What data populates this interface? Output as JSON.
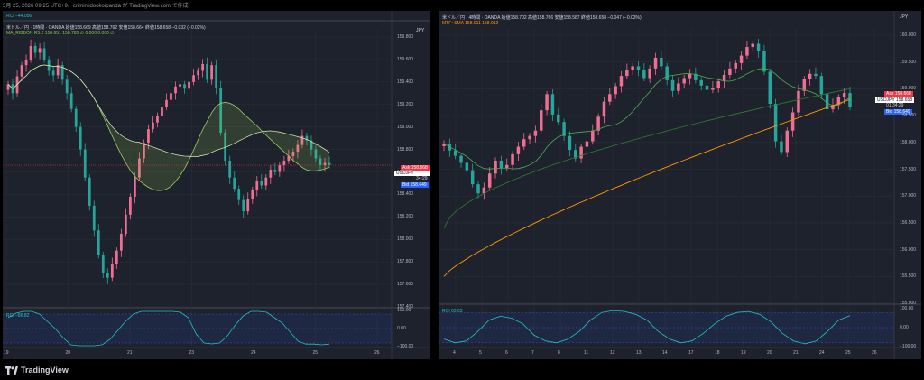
{
  "header_text": "3月 25, 2026 09:25 UTC+9、criminlidookoipanda が TradingView.com で作成",
  "brand": "TradingView",
  "colors": {
    "bg": "#1e222d",
    "up": "#f06e91",
    "down": "#26a69a",
    "grid": "#2a2e39",
    "ribbon": "#8bc34a",
    "sma": "#ff9800",
    "rci": "#22c1c3",
    "ask": "#f23645",
    "bid": "#2962ff"
  },
  "left": {
    "top_rci_label": "RCI  −44.056",
    "currency": "JPY",
    "title": "米ドル／円 · 1時間 · OANDA  始値158.669  高値158.762  安値158.664  終値158.658  −0.032 (−0.02%)",
    "indicator": "MA_RIBBON R5.2  158.651  158.785  ∅  0.000  0.000  ∅",
    "price_labels": [
      "159.800",
      "159.600",
      "159.400",
      "159.200",
      "159.000",
      "158.800",
      "158.600",
      "158.400",
      "158.200",
      "158.000",
      "157.800",
      "157.600",
      "157.400"
    ],
    "x_labels": [
      "19",
      "20",
      "21",
      "23",
      "24",
      "25",
      "26"
    ],
    "ask_label": "Ask  158.668",
    "symbol_label": "USDJPY  158.658",
    "countdown": "34:29",
    "bid_label": "Bid  158.649",
    "rci_label": "RCI  −86.82",
    "rci_scale": [
      "100.00",
      "0.00",
      "−100.00"
    ]
  },
  "right": {
    "currency": "JPY",
    "title": "米ドル／円 · 4時間 · OANDA  始値158.702  高値158.766  安値158.587  終値158.658  −0.047 (−0.03%)",
    "indicator": "MTF~SMA  158.911  158.912",
    "price_labels": [
      "160.000",
      "159.500",
      "159.000",
      "158.500",
      "158.000",
      "157.500",
      "157.000",
      "156.500",
      "156.000",
      "155.500",
      "155.000"
    ],
    "x_labels": [
      "4",
      "5",
      "6",
      "7",
      "8",
      "11",
      "12",
      "13",
      "14",
      "17",
      "18",
      "19",
      "20",
      "21",
      "24",
      "25",
      "26"
    ],
    "ask_label": "Ask  158.668",
    "symbol_label": "USDJPY  158.658",
    "countdown": "01:34:29",
    "bid_label": "Bid  158.649",
    "rci_label": "RCI  63.03",
    "rci_scale": [
      "100.00",
      "0.00",
      "−100.00"
    ]
  },
  "chart_data": [
    {
      "type": "candlestick",
      "title": "USD/JPY 1H",
      "ylim": [
        157.4,
        159.8
      ],
      "closes": [
        159.38,
        159.3,
        159.45,
        159.55,
        159.6,
        159.72,
        159.66,
        159.7,
        159.6,
        159.5,
        159.46,
        159.55,
        159.42,
        159.3,
        159.16,
        159.0,
        158.8,
        158.55,
        158.3,
        158.08,
        157.86,
        157.7,
        157.66,
        157.78,
        157.9,
        158.05,
        158.22,
        158.38,
        158.55,
        158.72,
        158.86,
        158.98,
        159.04,
        159.1,
        159.18,
        159.24,
        159.3,
        159.36,
        159.38,
        159.34,
        159.4,
        159.46,
        159.5,
        159.56,
        159.42,
        159.55,
        159.35,
        158.95,
        158.7,
        158.55,
        158.45,
        158.35,
        158.25,
        158.36,
        158.44,
        158.52,
        158.48,
        158.55,
        158.62,
        158.6,
        158.66,
        158.7,
        158.74,
        158.78,
        158.84,
        158.92,
        158.88,
        158.8,
        158.72,
        158.66,
        158.68,
        158.66
      ],
      "rci": [
        60,
        85,
        95,
        95,
        80,
        40,
        0,
        -50,
        -90,
        -95,
        -95,
        -95,
        -90,
        -60,
        -10,
        40,
        80,
        95,
        95,
        95,
        95,
        95,
        90,
        60,
        -30,
        -80,
        -85,
        -80,
        -40,
        20,
        70,
        95,
        95,
        90,
        60,
        30,
        -20,
        -70,
        -86,
        -86,
        -90,
        -86
      ]
    },
    {
      "type": "candlestick",
      "title": "USD/JPY 4H",
      "ylim": [
        155.0,
        160.0
      ],
      "closes": [
        157.98,
        157.85,
        157.75,
        157.62,
        157.48,
        157.22,
        157.05,
        157.16,
        157.42,
        157.66,
        157.52,
        157.58,
        157.78,
        157.92,
        158.06,
        158.12,
        158.22,
        158.6,
        158.9,
        158.52,
        158.38,
        158.12,
        157.86,
        157.7,
        157.92,
        158.02,
        158.22,
        158.48,
        158.76,
        158.9,
        159.05,
        159.24,
        159.35,
        159.42,
        159.36,
        159.2,
        159.38,
        159.58,
        159.42,
        159.16,
        158.96,
        159.1,
        159.2,
        159.28,
        159.16,
        159.06,
        158.98,
        159.02,
        159.14,
        159.26,
        159.38,
        159.48,
        159.62,
        159.78,
        159.84,
        159.7,
        159.32,
        158.72,
        158.02,
        157.82,
        158.22,
        158.56,
        158.96,
        159.18,
        159.28,
        159.24,
        158.9,
        158.62,
        158.7,
        158.84,
        158.92,
        158.66
      ],
      "sma_fast": [
        156.4,
        159.0
      ],
      "sma_slow": [
        155.5,
        158.8
      ],
      "rci": [
        -60,
        -80,
        -70,
        -20,
        40,
        60,
        50,
        20,
        -40,
        -70,
        -80,
        -60,
        -20,
        40,
        80,
        90,
        85,
        70,
        40,
        -20,
        -60,
        -80,
        -70,
        -30,
        20,
        60,
        80,
        85,
        70,
        30,
        -30,
        -70,
        -85,
        -70,
        -20,
        40,
        63
      ]
    }
  ]
}
